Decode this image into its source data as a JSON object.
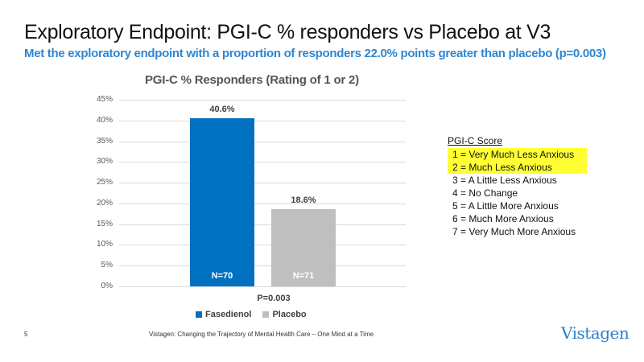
{
  "slide": {
    "title": "Exploratory Endpoint:  PGI-C % responders vs Placebo at V3",
    "subtitle": "Met the exploratory endpoint with a proportion of responders 22.0% points greater than placebo (p=0.003)",
    "page_number": "5",
    "footer": "Vistagen: Changing the Trajectory of Mental Health Care – One Mind at a Time",
    "logo": "Vistagen"
  },
  "chart_data": {
    "type": "bar",
    "title": "PGI-C % Responders (Rating of 1 or 2)",
    "categories": [
      "Fasedienol",
      "Placebo"
    ],
    "values": [
      40.6,
      18.6
    ],
    "value_labels": [
      "40.6%",
      "18.6%"
    ],
    "n_labels": [
      "N=70",
      "N=71"
    ],
    "colors": [
      "#0070c0",
      "#bfbfbf"
    ],
    "xlabel": "P=0.003",
    "ylabel": "",
    "ylim": [
      0,
      45
    ],
    "yticks": [
      "45%",
      "40%",
      "35%",
      "30%",
      "25%",
      "20%",
      "15%",
      "10%",
      "5%",
      "0%"
    ],
    "grid": true,
    "legend": [
      {
        "label": "Fasedienol",
        "color": "#0070c0"
      },
      {
        "label": "Placebo",
        "color": "#bfbfbf"
      }
    ],
    "legend_position": "bottom"
  },
  "score_legend": {
    "heading": "PGI-C Score",
    "items": [
      {
        "label": "1 = Very Much Less Anxious",
        "highlighted": true
      },
      {
        "label": "2 = Much Less Anxious",
        "highlighted": true
      },
      {
        "label": "3 = A Little Less Anxious",
        "highlighted": false
      },
      {
        "label": "4 = No Change",
        "highlighted": false
      },
      {
        "label": "5 = A Little More Anxious",
        "highlighted": false
      },
      {
        "label": "6 = Much More Anxious",
        "highlighted": false
      },
      {
        "label": "7 = Very Much More Anxious",
        "highlighted": false
      }
    ],
    "highlight_color": "#ffff33"
  }
}
